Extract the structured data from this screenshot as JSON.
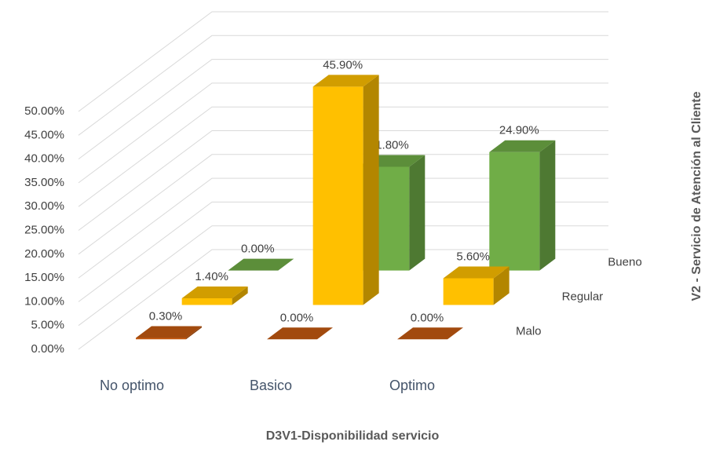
{
  "chart_data": {
    "type": "bar3d",
    "xlabel": "D3V1-Disponibilidad servicio",
    "zlabel": "V2 - Servicio de Atención al Cliente",
    "categories": [
      "No optimo",
      "Basico",
      "Optimo"
    ],
    "series": [
      {
        "name": "Malo",
        "color": "#c55a11",
        "values": [
          0.3,
          0.0,
          0.0
        ],
        "value_labels": [
          "0.30%",
          "0.00%",
          "0.00%"
        ]
      },
      {
        "name": "Regular",
        "color": "#ffc000",
        "values": [
          1.4,
          45.9,
          5.6
        ],
        "value_labels": [
          "1.40%",
          "45.90%",
          "5.60%"
        ]
      },
      {
        "name": "Bueno",
        "color": "#70ad47",
        "values": [
          0.0,
          21.8,
          24.9
        ],
        "value_labels": [
          "0.00%",
          "21.80%",
          "24.90%"
        ]
      }
    ],
    "ylim": [
      0,
      50
    ],
    "yticks": [
      {
        "value": 0,
        "label": "0.00%"
      },
      {
        "value": 5,
        "label": "5.00%"
      },
      {
        "value": 10,
        "label": "10.00%"
      },
      {
        "value": 15,
        "label": "15.00%"
      },
      {
        "value": 20,
        "label": "20.00%"
      },
      {
        "value": 25,
        "label": "25.00%"
      },
      {
        "value": 30,
        "label": "30.00%"
      },
      {
        "value": 35,
        "label": "35.00%"
      },
      {
        "value": 40,
        "label": "40.00%"
      },
      {
        "value": 45,
        "label": "45.00%"
      },
      {
        "value": 50,
        "label": "50.00%"
      }
    ],
    "grid": true
  }
}
